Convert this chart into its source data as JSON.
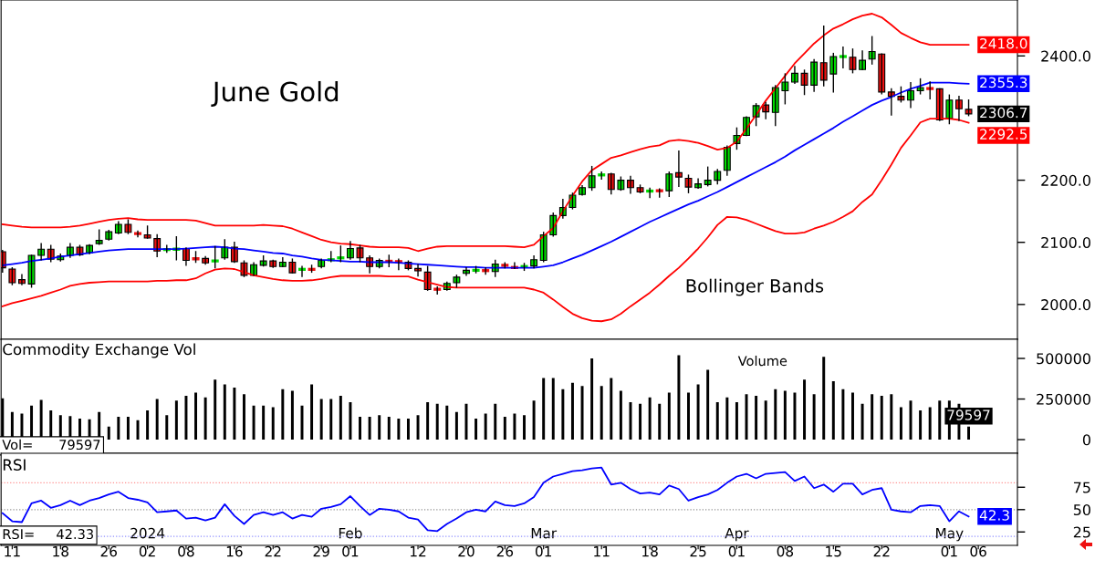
{
  "chart_data": [
    {
      "type": "candlestick",
      "title": "June Gold",
      "annotations": [
        "Bollinger Bands"
      ],
      "ohlc": [
        [
          2085,
          2088,
          2051,
          2059
        ],
        [
          2057,
          2060,
          2031,
          2035
        ],
        [
          2040,
          2049,
          2031,
          2034
        ],
        [
          2033,
          2080,
          2027,
          2079
        ],
        [
          2079,
          2099,
          2071,
          2089
        ],
        [
          2089,
          2096,
          2068,
          2073
        ],
        [
          2072,
          2082,
          2069,
          2078
        ],
        [
          2079,
          2099,
          2075,
          2092
        ],
        [
          2092,
          2096,
          2078,
          2080
        ],
        [
          2083,
          2097,
          2081,
          2095
        ],
        [
          2098,
          2121,
          2096,
          2103
        ],
        [
          2105,
          2120,
          2103,
          2117
        ],
        [
          2115,
          2134,
          2113,
          2129
        ],
        [
          2129,
          2137,
          2113,
          2116
        ],
        [
          2115,
          2119,
          2108,
          2113
        ],
        [
          2112,
          2127,
          2106,
          2107
        ],
        [
          2106,
          2113,
          2076,
          2086
        ],
        [
          2088,
          2096,
          2083,
          2089
        ],
        [
          2088,
          2110,
          2071,
          2090
        ],
        [
          2090,
          2092,
          2062,
          2071
        ],
        [
          2074,
          2086,
          2067,
          2073
        ],
        [
          2074,
          2078,
          2064,
          2067
        ],
        [
          2069,
          2094,
          2058,
          2071
        ],
        [
          2075,
          2105,
          2072,
          2092
        ],
        [
          2092,
          2101,
          2067,
          2069
        ],
        [
          2067,
          2071,
          2044,
          2047
        ],
        [
          2047,
          2068,
          2046,
          2064
        ],
        [
          2063,
          2079,
          2061,
          2070
        ],
        [
          2070,
          2072,
          2059,
          2061
        ],
        [
          2061,
          2076,
          2060,
          2068
        ],
        [
          2068,
          2074,
          2050,
          2051
        ],
        [
          2056,
          2062,
          2044,
          2057
        ],
        [
          2057,
          2064,
          2051,
          2056
        ],
        [
          2061,
          2074,
          2058,
          2071
        ],
        [
          2071,
          2086,
          2068,
          2073
        ],
        [
          2074,
          2095,
          2068,
          2076
        ],
        [
          2075,
          2102,
          2072,
          2090
        ],
        [
          2091,
          2096,
          2068,
          2075
        ],
        [
          2075,
          2079,
          2050,
          2061
        ],
        [
          2061,
          2074,
          2058,
          2071
        ],
        [
          2070,
          2080,
          2060,
          2069
        ],
        [
          2070,
          2074,
          2055,
          2068
        ],
        [
          2068,
          2071,
          2055,
          2058
        ],
        [
          2058,
          2065,
          2045,
          2054
        ],
        [
          2052,
          2062,
          2022,
          2024
        ],
        [
          2025,
          2029,
          2016,
          2024
        ],
        [
          2024,
          2037,
          2022,
          2034
        ],
        [
          2035,
          2048,
          2027,
          2044
        ],
        [
          2050,
          2060,
          2046,
          2055
        ],
        [
          2054,
          2062,
          2050,
          2056
        ],
        [
          2055,
          2060,
          2048,
          2054
        ],
        [
          2053,
          2072,
          2044,
          2065
        ],
        [
          2064,
          2068,
          2058,
          2062
        ],
        [
          2060,
          2068,
          2057,
          2059
        ],
        [
          2060,
          2067,
          2054,
          2062
        ],
        [
          2062,
          2079,
          2058,
          2072
        ],
        [
          2071,
          2117,
          2068,
          2112
        ],
        [
          2112,
          2148,
          2109,
          2143
        ],
        [
          2143,
          2170,
          2138,
          2156
        ],
        [
          2156,
          2180,
          2153,
          2176
        ],
        [
          2177,
          2192,
          2175,
          2188
        ],
        [
          2188,
          2223,
          2183,
          2207
        ],
        [
          2208,
          2214,
          2201,
          2209
        ],
        [
          2210,
          2212,
          2177,
          2185
        ],
        [
          2185,
          2206,
          2183,
          2200
        ],
        [
          2200,
          2207,
          2178,
          2188
        ],
        [
          2188,
          2193,
          2179,
          2181
        ],
        [
          2182,
          2188,
          2171,
          2183
        ],
        [
          2184,
          2187,
          2172,
          2182
        ],
        [
          2183,
          2214,
          2173,
          2210
        ],
        [
          2212,
          2248,
          2189,
          2205
        ],
        [
          2203,
          2209,
          2179,
          2189
        ],
        [
          2188,
          2203,
          2186,
          2194
        ],
        [
          2193,
          2222,
          2190,
          2200
        ],
        [
          2200,
          2218,
          2193,
          2214
        ],
        [
          2216,
          2256,
          2207,
          2253
        ],
        [
          2259,
          2285,
          2249,
          2272
        ],
        [
          2272,
          2303,
          2271,
          2301
        ],
        [
          2302,
          2324,
          2287,
          2320
        ],
        [
          2321,
          2326,
          2298,
          2310
        ],
        [
          2309,
          2353,
          2287,
          2349
        ],
        [
          2344,
          2372,
          2322,
          2358
        ],
        [
          2358,
          2384,
          2355,
          2372
        ],
        [
          2372,
          2378,
          2337,
          2353
        ],
        [
          2353,
          2395,
          2342,
          2390
        ],
        [
          2389,
          2449,
          2351,
          2361
        ],
        [
          2371,
          2405,
          2341,
          2399
        ],
        [
          2398,
          2415,
          2380,
          2400
        ],
        [
          2398,
          2412,
          2372,
          2378
        ],
        [
          2378,
          2409,
          2377,
          2393
        ],
        [
          2395,
          2432,
          2386,
          2407
        ],
        [
          2403,
          2404,
          2338,
          2342
        ],
        [
          2342,
          2348,
          2304,
          2335
        ],
        [
          2335,
          2351,
          2325,
          2329
        ],
        [
          2329,
          2358,
          2316,
          2344
        ],
        [
          2344,
          2364,
          2338,
          2349
        ],
        [
          2348,
          2359,
          2330,
          2347
        ],
        [
          2347,
          2348,
          2295,
          2297
        ],
        [
          2299,
          2338,
          2290,
          2329
        ],
        [
          2329,
          2336,
          2295,
          2315
        ],
        [
          2314,
          2330,
          2303,
          2306.7
        ],
        null
      ],
      "colors": [
        "#ee1111",
        "#ee1111",
        "#ee1111",
        "#00dd00",
        "#00dd00",
        "#ee1111",
        "#00dd00",
        "#00dd00",
        "#ee1111",
        "#00dd00",
        "#00dd00",
        "#00dd00",
        "#00dd00",
        "#ee1111",
        "#ee1111",
        "#ee1111",
        "#ee1111",
        "#00dd00",
        "#00dd00",
        "#ee1111",
        "#ee1111",
        "#ee1111",
        "#00dd00",
        "#00dd00",
        "#ee1111",
        "#ee1111",
        "#00dd00",
        "#00dd00",
        "#ee1111",
        "#00dd00",
        "#ee1111",
        "#00dd00",
        "#ee1111",
        "#00dd00",
        "#00dd00",
        "#00dd00",
        "#00dd00",
        "#ee1111",
        "#ee1111",
        "#00dd00",
        "#ee1111",
        "#ee1111",
        "#ee1111",
        "#ee1111",
        "#ee1111",
        "#ee1111",
        "#00dd00",
        "#00dd00",
        "#00dd00",
        "#00dd00",
        "#ee1111",
        "#00dd00",
        "#ee1111",
        "#ee1111",
        "#00dd00",
        "#00dd00",
        "#00dd00",
        "#00dd00",
        "#00dd00",
        "#00dd00",
        "#00dd00",
        "#00dd00",
        "#00dd00",
        "#ee1111",
        "#00dd00",
        "#ee1111",
        "#ee1111",
        "#00dd00",
        "#ee1111",
        "#00dd00",
        "#ee1111",
        "#ee1111",
        "#00dd00",
        "#00dd00",
        "#00dd00",
        "#00dd00",
        "#00dd00",
        "#00dd00",
        "#00dd00",
        "#ee1111",
        "#00dd00",
        "#00dd00",
        "#00dd00",
        "#ee1111",
        "#00dd00",
        "#ee1111",
        "#00dd00",
        "#00dd00",
        "#ee1111",
        "#00dd00",
        "#00dd00",
        "#ee1111",
        "#ee1111",
        "#ee1111",
        "#00dd00",
        "#00dd00",
        "#ee1111",
        "#ee1111",
        "#00dd00",
        "#ee1111",
        "#ee1111",
        null
      ],
      "value_labels": [
        null,
        null,
        null,
        null,
        null,
        null,
        null,
        null,
        null,
        null,
        null,
        null,
        null,
        null,
        null,
        null,
        null,
        null,
        null,
        null,
        null,
        null,
        null,
        null,
        null,
        null,
        null,
        null,
        null,
        null,
        null,
        null,
        null,
        null,
        null,
        null,
        null,
        null,
        null,
        null,
        null,
        null,
        null,
        null,
        null,
        null,
        null,
        null,
        null,
        null,
        null,
        null,
        null,
        null,
        null,
        null,
        null,
        null,
        null,
        null,
        null,
        null,
        null,
        null,
        null,
        null,
        null,
        null,
        null,
        null,
        null,
        null,
        null,
        null,
        null,
        null,
        null,
        null,
        null,
        null,
        null,
        null,
        null,
        null,
        null,
        null,
        null,
        null,
        null,
        null,
        null,
        null,
        null,
        null,
        null,
        null,
        null,
        null,
        null,
        null,
        "2306.7",
        null
      ],
      "series": [
        {
          "type": "line",
          "color": "#ff0000",
          "values": [
            2129,
            2127,
            2125,
            2124,
            2124,
            2124,
            2124,
            2125,
            2127,
            2130,
            2133,
            2136,
            2138,
            2139,
            2137,
            2136,
            2136,
            2136,
            2136,
            2136,
            2135,
            2131,
            2127,
            2127,
            2127,
            2127,
            2127,
            2128,
            2127,
            2126,
            2122,
            2116,
            2110,
            2104,
            2100,
            2098,
            2097,
            2095,
            2093,
            2092,
            2092,
            2092,
            2091,
            2086,
            2090,
            2093,
            2094,
            2094,
            2094,
            2094,
            2094,
            2094,
            2094,
            2093,
            2092,
            2096,
            2110,
            2123,
            2150,
            2175,
            2198,
            2216,
            2226,
            2236,
            2240,
            2245,
            2250,
            2254,
            2256,
            2263,
            2265,
            2263,
            2260,
            2255,
            2249,
            2252,
            2262,
            2283,
            2305,
            2328,
            2348,
            2368,
            2388,
            2404,
            2420,
            2433,
            2444,
            2451,
            2459,
            2465,
            2468,
            2462,
            2450,
            2437,
            2429,
            2422,
            2418,
            2418,
            2418,
            2418,
            2418.0,
            null
          ],
          "value_labels": [
            null,
            null,
            null,
            null,
            null,
            null,
            null,
            null,
            null,
            null,
            null,
            null,
            null,
            null,
            null,
            null,
            null,
            null,
            null,
            null,
            null,
            null,
            null,
            null,
            null,
            null,
            null,
            null,
            null,
            null,
            null,
            null,
            null,
            null,
            null,
            null,
            null,
            null,
            null,
            null,
            null,
            null,
            null,
            null,
            null,
            null,
            null,
            null,
            null,
            null,
            null,
            null,
            null,
            null,
            null,
            null,
            null,
            null,
            null,
            null,
            null,
            null,
            null,
            null,
            null,
            null,
            null,
            null,
            null,
            null,
            null,
            null,
            null,
            null,
            null,
            null,
            null,
            null,
            null,
            null,
            null,
            null,
            null,
            null,
            null,
            null,
            null,
            null,
            null,
            null,
            null,
            null,
            null,
            null,
            null,
            null,
            null,
            null,
            null,
            null,
            "2418.0",
            null
          ]
        },
        {
          "type": "line",
          "color": "#0000ff",
          "values": [
            2063,
            2065,
            2067,
            2070,
            2072,
            2074,
            2077,
            2079,
            2081,
            2083,
            2085,
            2087,
            2088,
            2089,
            2089,
            2089,
            2089,
            2089,
            2089,
            2090,
            2091,
            2092,
            2093,
            2092,
            2090,
            2089,
            2087,
            2085,
            2083,
            2082,
            2079,
            2077,
            2074,
            2072,
            2071,
            2070,
            2069,
            2069,
            2068,
            2068,
            2068,
            2067,
            2066,
            2065,
            2064,
            2063,
            2062,
            2061,
            2060,
            2060,
            2059,
            2059,
            2059,
            2059,
            2059,
            2059,
            2061,
            2063,
            2068,
            2074,
            2080,
            2087,
            2094,
            2101,
            2109,
            2117,
            2125,
            2133,
            2140,
            2147,
            2154,
            2161,
            2167,
            2174,
            2181,
            2189,
            2197,
            2205,
            2213,
            2221,
            2229,
            2238,
            2248,
            2257,
            2266,
            2275,
            2284,
            2294,
            2303,
            2312,
            2321,
            2328,
            2334,
            2341,
            2347,
            2352,
            2357,
            2357,
            2357,
            2356,
            2355.3,
            null
          ],
          "value_labels": [
            null,
            null,
            null,
            null,
            null,
            null,
            null,
            null,
            null,
            null,
            null,
            null,
            null,
            null,
            null,
            null,
            null,
            null,
            null,
            null,
            null,
            null,
            null,
            null,
            null,
            null,
            null,
            null,
            null,
            null,
            null,
            null,
            null,
            null,
            null,
            null,
            null,
            null,
            null,
            null,
            null,
            null,
            null,
            null,
            null,
            null,
            null,
            null,
            null,
            null,
            null,
            null,
            null,
            null,
            null,
            null,
            null,
            null,
            null,
            null,
            null,
            null,
            null,
            null,
            null,
            null,
            null,
            null,
            null,
            null,
            null,
            null,
            null,
            null,
            null,
            null,
            null,
            null,
            null,
            null,
            null,
            null,
            null,
            null,
            null,
            null,
            null,
            null,
            null,
            null,
            null,
            null,
            null,
            null,
            null,
            null,
            null,
            null,
            null,
            null,
            "2355.3",
            null
          ]
        },
        {
          "type": "line",
          "color": "#ff0000",
          "values": [
            1997,
            2002,
            2006,
            2010,
            2014,
            2019,
            2024,
            2030,
            2033,
            2035,
            2036,
            2037,
            2037,
            2037,
            2037,
            2037,
            2038,
            2038,
            2039,
            2039,
            2042,
            2050,
            2056,
            2058,
            2057,
            2052,
            2047,
            2044,
            2041,
            2039,
            2038,
            2038,
            2039,
            2041,
            2044,
            2046,
            2046,
            2046,
            2046,
            2046,
            2045,
            2045,
            2045,
            2040,
            2036,
            2032,
            2028,
            2027,
            2027,
            2027,
            2027,
            2027,
            2027,
            2027,
            2027,
            2024,
            2019,
            2008,
            1996,
            1985,
            1978,
            1974,
            1973,
            1976,
            1985,
            1997,
            2008,
            2019,
            2032,
            2046,
            2059,
            2074,
            2090,
            2108,
            2128,
            2141,
            2140,
            2136,
            2130,
            2124,
            2118,
            2114,
            2114,
            2116,
            2122,
            2127,
            2133,
            2141,
            2150,
            2165,
            2177,
            2200,
            2225,
            2252,
            2272,
            2293,
            2299,
            2299,
            2299,
            2297,
            2292.5,
            null
          ],
          "value_labels": [
            null,
            null,
            null,
            null,
            null,
            null,
            null,
            null,
            null,
            null,
            null,
            null,
            null,
            null,
            null,
            null,
            null,
            null,
            null,
            null,
            null,
            null,
            null,
            null,
            null,
            null,
            null,
            null,
            null,
            null,
            null,
            null,
            null,
            null,
            null,
            null,
            null,
            null,
            null,
            null,
            null,
            null,
            null,
            null,
            null,
            null,
            null,
            null,
            null,
            null,
            null,
            null,
            null,
            null,
            null,
            null,
            null,
            null,
            null,
            null,
            null,
            null,
            null,
            null,
            null,
            null,
            null,
            null,
            null,
            null,
            null,
            null,
            null,
            null,
            null,
            null,
            null,
            null,
            null,
            null,
            null,
            null,
            null,
            null,
            null,
            null,
            null,
            null,
            null,
            null,
            null,
            null,
            null,
            null,
            null,
            null,
            null,
            null,
            null,
            null,
            "2292.5",
            null
          ]
        }
      ],
      "ylim": [
        1944,
        2490
      ],
      "yticks": [
        {
          "value": 2000,
          "label": "2000.0"
        },
        {
          "value": 2100,
          "label": "2100.0"
        },
        {
          "value": 2200,
          "label": "2200.0"
        },
        {
          "value": 2400,
          "label": "2400.0"
        }
      ],
      "tick_labels": "y"
    },
    {
      "type": "bar",
      "annotations": [
        "Commodity Exchange Vol",
        "Volume",
        "Vol=      79597"
      ],
      "color": "#000000",
      "values": [
        255000,
        170000,
        160000,
        210000,
        245000,
        180000,
        150000,
        145000,
        130000,
        125000,
        170000,
        80000,
        140000,
        140000,
        120000,
        180000,
        250000,
        150000,
        240000,
        270000,
        290000,
        260000,
        370000,
        340000,
        320000,
        280000,
        210000,
        210000,
        200000,
        310000,
        300000,
        210000,
        340000,
        250000,
        250000,
        270000,
        230000,
        140000,
        140000,
        150000,
        140000,
        130000,
        130000,
        150000,
        230000,
        220000,
        210000,
        170000,
        220000,
        130000,
        160000,
        220000,
        140000,
        160000,
        150000,
        240000,
        380000,
        380000,
        310000,
        350000,
        330000,
        500000,
        330000,
        380000,
        300000,
        230000,
        220000,
        260000,
        220000,
        290000,
        520000,
        290000,
        340000,
        430000,
        230000,
        260000,
        230000,
        280000,
        270000,
        240000,
        310000,
        300000,
        290000,
        370000,
        280000,
        510000,
        360000,
        310000,
        290000,
        220000,
        280000,
        270000,
        280000,
        200000,
        240000,
        180000,
        200000,
        240000,
        240000,
        220000,
        79597,
        null
      ],
      "value_labels": [
        null,
        null,
        null,
        null,
        null,
        null,
        null,
        null,
        null,
        null,
        null,
        null,
        null,
        null,
        null,
        null,
        null,
        null,
        null,
        null,
        null,
        null,
        null,
        null,
        null,
        null,
        null,
        null,
        null,
        null,
        null,
        null,
        null,
        null,
        null,
        null,
        null,
        null,
        null,
        null,
        null,
        null,
        null,
        null,
        null,
        null,
        null,
        null,
        null,
        null,
        null,
        null,
        null,
        null,
        null,
        null,
        null,
        null,
        null,
        null,
        null,
        null,
        null,
        null,
        null,
        null,
        null,
        null,
        null,
        null,
        null,
        null,
        null,
        null,
        null,
        null,
        null,
        null,
        null,
        null,
        null,
        null,
        null,
        null,
        null,
        null,
        null,
        null,
        null,
        null,
        null,
        null,
        null,
        null,
        null,
        null,
        null,
        null,
        null,
        null,
        "79597",
        null
      ],
      "ylim": [
        -84000,
        618000
      ],
      "yticks": [
        0,
        250000,
        500000
      ],
      "tick_labels": "y"
    },
    {
      "type": "line",
      "annotations": [
        "RSI",
        "RSI=     42.33"
      ],
      "color": "#0000ff",
      "categories": [
        null,
        "11",
        null,
        null,
        null,
        null,
        "18",
        null,
        null,
        null,
        null,
        "26",
        null,
        null,
        null,
        "2024\n02",
        null,
        null,
        null,
        "08",
        null,
        null,
        null,
        null,
        "16",
        null,
        null,
        null,
        "22",
        null,
        null,
        null,
        null,
        "29",
        null,
        null,
        "Feb\n01",
        null,
        null,
        null,
        null,
        null,
        null,
        "12",
        null,
        null,
        null,
        null,
        "20",
        null,
        null,
        null,
        "26",
        null,
        null,
        null,
        "Mar\n01",
        null,
        null,
        null,
        null,
        null,
        "11",
        null,
        null,
        null,
        null,
        "18",
        null,
        null,
        null,
        null,
        "25",
        null,
        null,
        null,
        "Apr\n01",
        null,
        null,
        null,
        null,
        "08",
        null,
        null,
        null,
        null,
        "15",
        null,
        null,
        null,
        null,
        "22",
        null,
        null,
        null,
        null,
        null,
        null,
        "May\n01",
        null,
        null,
        "06"
      ],
      "values": [
        46,
        37,
        36,
        57,
        60,
        52,
        55,
        60,
        55,
        60,
        63,
        67,
        70,
        63,
        61,
        58,
        47,
        48,
        49,
        40,
        41,
        38,
        41,
        56,
        43,
        34,
        44,
        47,
        44,
        47,
        40,
        44,
        42,
        51,
        53,
        56,
        65,
        54,
        44,
        51,
        50,
        48,
        41,
        39,
        27,
        26,
        34,
        40,
        47,
        50,
        48,
        59,
        55,
        54,
        57,
        64,
        80,
        87,
        90,
        93,
        94,
        96,
        97,
        78,
        80,
        73,
        68,
        69,
        67,
        77,
        73,
        60,
        64,
        67,
        72,
        80,
        87,
        90,
        85,
        90,
        91,
        92,
        82,
        87,
        74,
        78,
        70,
        79,
        79,
        67,
        72,
        74,
        50,
        48,
        47,
        54,
        55,
        54,
        37,
        48,
        42.33,
        null
      ],
      "value_labels": [
        null,
        null,
        null,
        null,
        null,
        null,
        null,
        null,
        null,
        null,
        null,
        null,
        null,
        null,
        null,
        null,
        null,
        null,
        null,
        null,
        null,
        null,
        null,
        null,
        null,
        null,
        null,
        null,
        null,
        null,
        null,
        null,
        null,
        null,
        null,
        null,
        null,
        null,
        null,
        null,
        null,
        null,
        null,
        null,
        null,
        null,
        null,
        null,
        null,
        null,
        null,
        null,
        null,
        null,
        null,
        null,
        null,
        null,
        null,
        null,
        null,
        null,
        null,
        null,
        null,
        null,
        null,
        null,
        null,
        null,
        null,
        null,
        null,
        null,
        null,
        null,
        null,
        null,
        null,
        null,
        null,
        null,
        null,
        null,
        null,
        null,
        null,
        null,
        null,
        null,
        null,
        null,
        null,
        null,
        null,
        null,
        null,
        null,
        null,
        null,
        "42.3",
        null
      ],
      "ref_lines": [
        {
          "axis": "y",
          "value": 80,
          "color": "#ff9090",
          "line_style": "dotted"
        },
        {
          "axis": "y",
          "value": 50,
          "color": "#909090",
          "line_style": "dotted"
        },
        {
          "axis": "y",
          "value": 20,
          "color": "#9090ff",
          "line_style": "dotted"
        }
      ],
      "ylim": [
        10,
        113
      ],
      "yticks": [
        25,
        50,
        75
      ]
    }
  ]
}
